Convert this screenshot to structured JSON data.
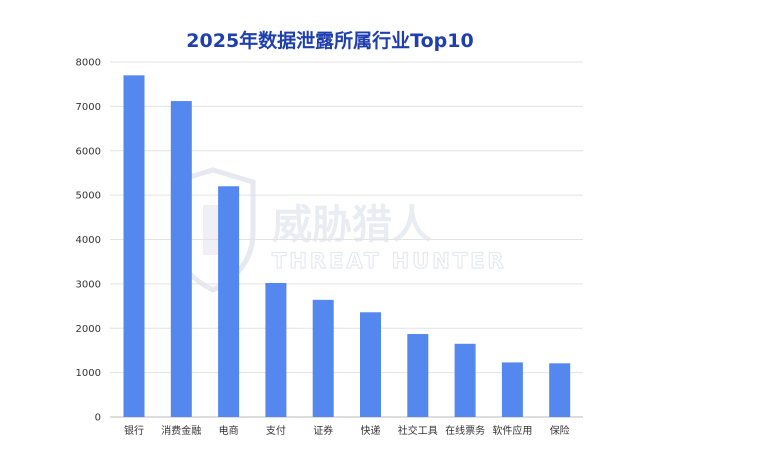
{
  "chart_data": {
    "type": "bar",
    "title": "2025年数据泄露所属行业Top10",
    "categories": [
      "银行",
      "消费金融",
      "电商",
      "支付",
      "证券",
      "快递",
      "社交工具",
      "在线票务",
      "软件应用",
      "保险"
    ],
    "values": [
      7700,
      7120,
      5200,
      3020,
      2640,
      2360,
      1870,
      1650,
      1230,
      1210
    ],
    "ylim": [
      0,
      8000
    ],
    "yticks": [
      0,
      1000,
      2000,
      3000,
      4000,
      5000,
      6000,
      7000,
      8000
    ],
    "xlabel": "",
    "ylabel": "",
    "grid": true,
    "bar_color": "#5588ee",
    "grid_color": "#e3e3e3"
  },
  "watermark": {
    "cn": "威胁猎人",
    "en": "THREAT HUNTER",
    "icon": "shield-icon",
    "color": "#e9ecf2"
  }
}
